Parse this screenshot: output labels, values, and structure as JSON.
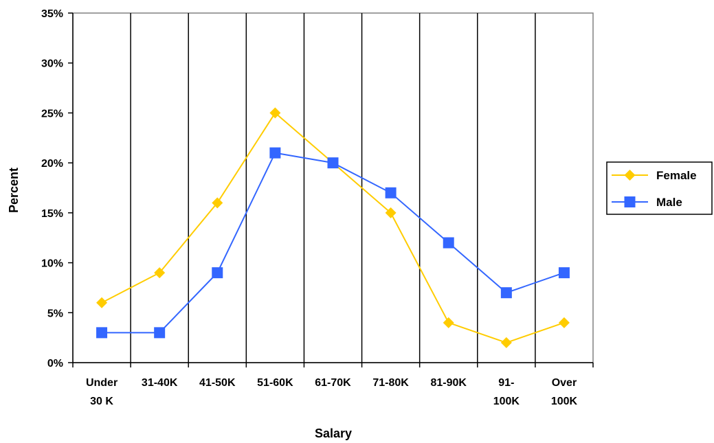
{
  "chart_data": {
    "type": "line",
    "title": "",
    "xlabel": "Salary",
    "ylabel": "Percent",
    "categories": [
      [
        "Under",
        "30 K"
      ],
      [
        "31-40K"
      ],
      [
        "41-50K"
      ],
      [
        "51-60K"
      ],
      [
        "61-70K"
      ],
      [
        "71-80K"
      ],
      [
        "81-90K"
      ],
      [
        "91-",
        "100K"
      ],
      [
        "Over",
        "100K"
      ]
    ],
    "ylim": [
      0,
      35
    ],
    "yticks": [
      0,
      5,
      10,
      15,
      20,
      25,
      30,
      35
    ],
    "ytick_labels": [
      "0%",
      "5%",
      "10%",
      "15%",
      "20%",
      "25%",
      "30%",
      "35%"
    ],
    "grid": "vertical lines between categories",
    "legend_position": "right",
    "series": [
      {
        "name": "Female",
        "color": "#FFCC00",
        "marker": "diamond",
        "values": [
          6,
          9,
          16,
          25,
          20,
          15,
          4,
          2,
          4
        ]
      },
      {
        "name": "Male",
        "color": "#3366FF",
        "marker": "square",
        "values": [
          3,
          3,
          9,
          21,
          20,
          17,
          12,
          7,
          9
        ]
      }
    ]
  }
}
